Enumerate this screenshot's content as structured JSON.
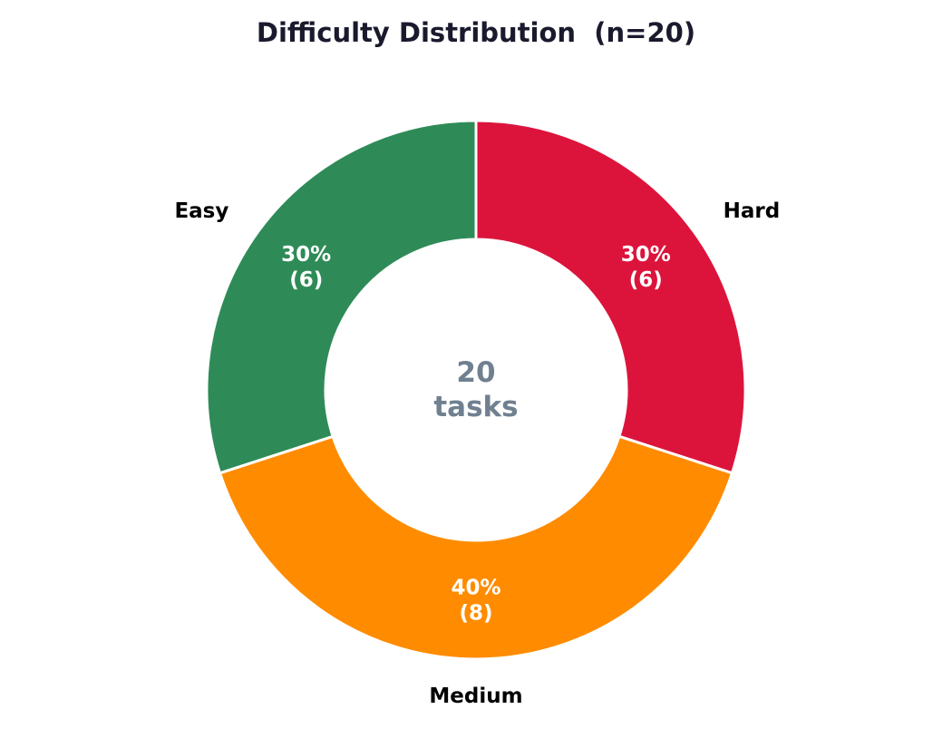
{
  "chart_data": {
    "type": "pie",
    "variant": "donut",
    "title": "Difficulty Distribution  (n=20)",
    "center_value": "20",
    "center_unit": "tasks",
    "slices": [
      {
        "label": "Hard",
        "value": 6,
        "percent_label": "30%",
        "count_label": "(6)",
        "color": "#DC143C"
      },
      {
        "label": "Medium",
        "value": 8,
        "percent_label": "40%",
        "count_label": "(8)",
        "color": "#FF8C00"
      },
      {
        "label": "Easy",
        "value": 6,
        "percent_label": "30%",
        "count_label": "(6)",
        "color": "#2E8B57"
      }
    ],
    "start_angle": "top",
    "direction": "clockwise",
    "edge_color": "#ffffff",
    "center_text_color": "#708090",
    "title_color": "#1a1a2e"
  }
}
